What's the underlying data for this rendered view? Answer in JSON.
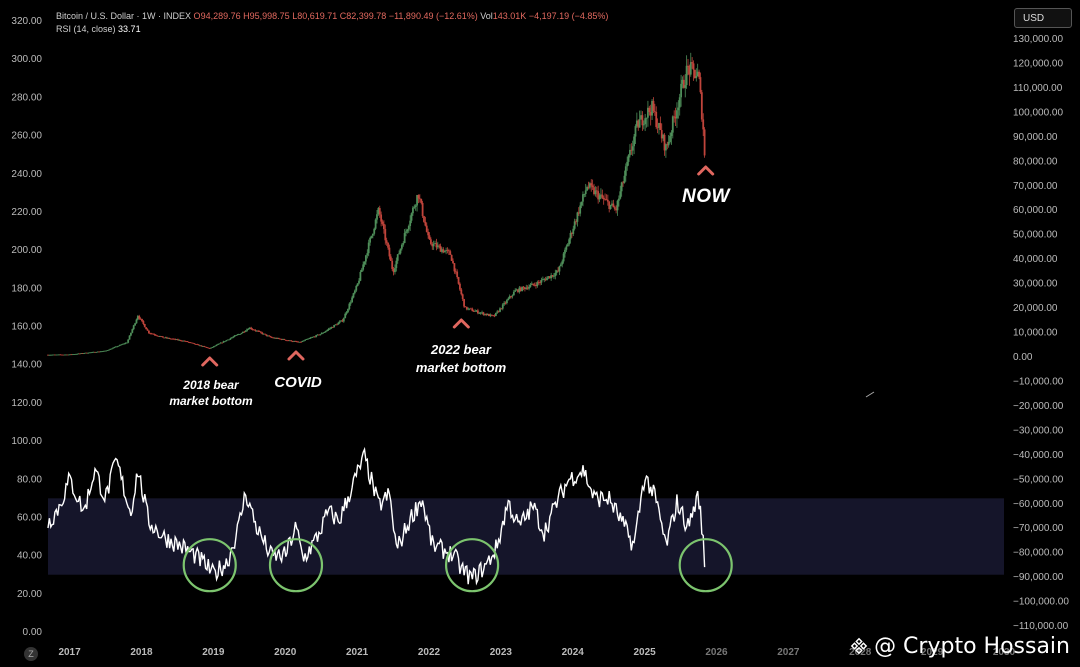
{
  "header": {
    "symbol": "Bitcoin / U.S. Dollar · 1W · INDEX",
    "open_label": "O",
    "open": "94,289.76",
    "high_label": "H",
    "high": "95,998.75",
    "low_label": "L",
    "low": "80,619.71",
    "close_label": "C",
    "close": "82,399.78",
    "change": "−11,890.49 (−12.61%)",
    "vol_label": "Vol",
    "vol": "143.01K",
    "vol_change": "−4,197.19 (−4.85%)",
    "rsi_label": "RSI (14, close)",
    "rsi_value": "33.71"
  },
  "currency_button": "USD",
  "annotations": {
    "bear2018_line1": "2018 bear",
    "bear2018_line2": "market bottom",
    "covid": "COVID",
    "bear2022_line1": "2022 bear",
    "bear2022_line2": "market bottom",
    "now": "NOW"
  },
  "watermark": "@ Crypto Hossain",
  "colors": {
    "background": "#000000",
    "bull": "#4f8f5a",
    "bear": "#c0443b",
    "rsi_line": "#ffffff",
    "rsi_band": "#15152a",
    "circles": "#7cc46e",
    "arrows": "#e0675f"
  },
  "chart_data": {
    "type": "line",
    "x_axis": {
      "tick_labels": [
        "2017",
        "2018",
        "2019",
        "2020",
        "2021",
        "2022",
        "2023",
        "2024",
        "2025",
        "2026",
        "2027",
        "2028",
        "2029",
        "2030"
      ],
      "range": [
        2016.7,
        2030.0
      ]
    },
    "left_axis": {
      "tick_labels": [
        "0.00",
        "20.00",
        "40.00",
        "60.00",
        "80.00",
        "100.00",
        "120.00",
        "140.00",
        "160.00",
        "180.00",
        "200.00",
        "220.00",
        "240.00",
        "260.00",
        "280.00",
        "300.00",
        "320.00"
      ],
      "range": [
        0,
        320
      ]
    },
    "right_axis": {
      "tick_labels": [
        "130,000.00",
        "120,000.00",
        "110,000.00",
        "100,000.00",
        "90,000.00",
        "80,000.00",
        "70,000.00",
        "60,000.00",
        "50,000.00",
        "40,000.00",
        "30,000.00",
        "20,000.00",
        "10,000.00",
        "0.00",
        "−10,000.00",
        "−20,000.00",
        "−30,000.00",
        "−40,000.00",
        "−50,000.00",
        "−60,000.00",
        "−70,000.00",
        "−80,000.00",
        "−90,000.00",
        "−100,000.00",
        "−110,000.00"
      ],
      "range": [
        -113000,
        136000
      ]
    },
    "price_series": {
      "name": "Bitcoin / U.S. Dollar",
      "x": [
        2016.7,
        2017.0,
        2017.5,
        2017.8,
        2017.95,
        2018.1,
        2018.3,
        2018.6,
        2018.95,
        2019.4,
        2019.5,
        2019.8,
        2020.2,
        2020.5,
        2020.8,
        2021.0,
        2021.3,
        2021.5,
        2021.85,
        2022.0,
        2022.3,
        2022.5,
        2022.9,
        2023.2,
        2023.5,
        2023.8,
        2024.2,
        2024.6,
        2024.9,
        2025.1,
        2025.3,
        2025.5,
        2025.6,
        2025.75,
        2025.85
      ],
      "y": [
        900,
        1000,
        2500,
        6000,
        17000,
        10000,
        8000,
        6500,
        3500,
        10000,
        12000,
        8000,
        6000,
        9500,
        15000,
        29000,
        60000,
        35000,
        67000,
        47000,
        42000,
        20000,
        16500,
        27000,
        30000,
        35000,
        70000,
        60000,
        95000,
        102000,
        85000,
        108000,
        118000,
        115000,
        82400
      ]
    },
    "rsi_series": {
      "name": "RSI (14, close)",
      "x": [
        2016.7,
        2016.85,
        2017.0,
        2017.2,
        2017.35,
        2017.5,
        2017.65,
        2017.85,
        2017.95,
        2018.1,
        2018.3,
        2018.55,
        2018.75,
        2018.9,
        2019.0,
        2019.2,
        2019.35,
        2019.45,
        2019.6,
        2019.8,
        2020.0,
        2020.15,
        2020.25,
        2020.45,
        2020.6,
        2020.75,
        2020.95,
        2021.1,
        2021.3,
        2021.45,
        2021.55,
        2021.75,
        2021.9,
        2022.05,
        2022.2,
        2022.35,
        2022.45,
        2022.6,
        2022.8,
        2022.95,
        2023.1,
        2023.25,
        2023.45,
        2023.6,
        2023.8,
        2023.95,
        2024.15,
        2024.3,
        2024.5,
        2024.65,
        2024.85,
        2025.0,
        2025.15,
        2025.3,
        2025.45,
        2025.6,
        2025.75,
        2025.85
      ],
      "y": [
        57,
        65,
        80,
        63,
        85,
        70,
        90,
        62,
        85,
        58,
        50,
        45,
        40,
        35,
        30,
        37,
        55,
        73,
        55,
        40,
        40,
        55,
        38,
        50,
        63,
        58,
        78,
        92,
        66,
        72,
        43,
        60,
        70,
        45,
        43,
        40,
        33,
        28,
        35,
        45,
        68,
        55,
        66,
        52,
        70,
        80,
        85,
        70,
        70,
        60,
        45,
        82,
        70,
        45,
        68,
        55,
        72,
        34
      ]
    },
    "rsi_band": [
      30,
      70
    ],
    "annotations": [
      "2018 bear market bottom",
      "COVID",
      "2022 bear market bottom",
      "NOW"
    ]
  }
}
